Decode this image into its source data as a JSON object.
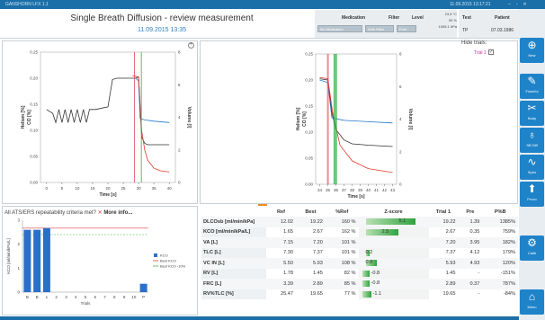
{
  "titlebar": {
    "app": "GANSHORN LFX 1.1",
    "datetime": "11.09.2015 13:17:21"
  },
  "header": {
    "title": "Single Breath Diffusion - review measurement",
    "date": "11.09.2015 13:35",
    "medication_label": "Medication",
    "medication_value": "No Medication",
    "filter_label": "Filter",
    "filter_value": "With Filter",
    "level_label": "Level",
    "level_value": "Post",
    "env": [
      "24.5 °C",
      "90 %",
      "1005.1 hPa"
    ],
    "test_label": "Test",
    "patient_label": "Patient",
    "test_value": "TP",
    "patient_value": "07.03.1986"
  },
  "sidebar": [
    {
      "label": "New",
      "icon": "⊕"
    },
    {
      "label": "FlowVol",
      "icon": "✎"
    },
    {
      "label": "Body",
      "icon": "✂"
    },
    {
      "label": "SB Diff",
      "icon": "♁"
    },
    {
      "label": "Spiro",
      "icon": "∿"
    },
    {
      "label": "Provo",
      "icon": "⬆"
    },
    {
      "label": "Calib",
      "icon": "⚙"
    },
    {
      "label": "Menu",
      "icon": "⌂"
    }
  ],
  "trials": {
    "hide_label": "Hide trials:",
    "trial1": "Trial 1",
    "check": "✓"
  },
  "criteria": {
    "text": "All ATS/ERS repeatability criteria met?",
    "x": "✕",
    "more": "More info..."
  },
  "table": {
    "headers": [
      "",
      "Ref",
      "Best",
      "%Ref",
      "Z-score",
      "Trial 1",
      "Pre",
      "P%B"
    ],
    "rows": [
      {
        "name": "DLCOsb",
        "unit": "[ml/min/kPa]",
        "ref": "12.02",
        "best": "19.22",
        "pref": "160 %",
        "z": "5.1",
        "zfrac": 0.78,
        "t1": "19.22",
        "pre": "1.39",
        "pb": "1385%"
      },
      {
        "name": "KCO",
        "unit": "[ml/min/kPa/L]",
        "ref": "1.65",
        "best": "2.67",
        "pref": "162 %",
        "z": "2.5",
        "zfrac": 0.52,
        "t1": "2.67",
        "pre": "0.35",
        "pb": "759%"
      },
      {
        "name": "VA",
        "unit": "[L]",
        "ref": "7.15",
        "best": "7.20",
        "pref": "101 %",
        "z": "",
        "zfrac": 0,
        "t1": "7.20",
        "pre": "3.95",
        "pb": "182%"
      },
      {
        "name": "TLC",
        "unit": "[L]",
        "ref": "7.30",
        "best": "7.37",
        "pref": "101 %",
        "z": "0.2",
        "zfrac": 0.06,
        "t1": "7.37",
        "pre": "4.12",
        "pb": "179%"
      },
      {
        "name": "VC IN",
        "unit": "[L]",
        "ref": "5.50",
        "best": "5.93",
        "pref": "108 %",
        "z": "0.8",
        "zfrac": 0.17,
        "t1": "5.93",
        "pre": "4.93",
        "pb": "120%"
      },
      {
        "name": "RV",
        "unit": "[L]",
        "ref": "1.78",
        "best": "1.45",
        "pref": "82 %",
        "z": "-0.8",
        "zfrac": 0.12,
        "t1": "1.45",
        "pre": "-",
        "pb": "-151%"
      },
      {
        "name": "FRC",
        "unit": "[L]",
        "ref": "3.39",
        "best": "2.89",
        "pref": "85 %",
        "z": "-0.8",
        "zfrac": 0.12,
        "t1": "2.89",
        "pre": "0.37",
        "pb": "787%"
      },
      {
        "name": "RV%TLC",
        "unit": "[%]",
        "ref": "25.47",
        "best": "19.65",
        "pref": "77 %",
        "z": "-1.1",
        "zfrac": 0.14,
        "t1": "19.65",
        "pre": "-",
        "pb": "-84%"
      }
    ]
  },
  "chart_data": [
    {
      "type": "line",
      "xlabel": "Time [s]",
      "ylabel_left": "Helium [%]",
      "ylabel_left2": "CO [%]",
      "ylabel_right": "Volume [l]",
      "xlim": [
        -2,
        42
      ],
      "xticks": [
        0,
        5,
        10,
        15,
        20,
        25,
        30,
        35,
        40
      ],
      "yticks_left": [
        "0.25",
        "0.20",
        "0.15",
        "0.10",
        "0.05",
        "0.00"
      ],
      "yticks_right": [
        "8",
        "6",
        "4",
        "2",
        "0"
      ],
      "series": [
        {
          "color": "#333333",
          "points": [
            [
              0,
              5.6
            ],
            [
              2,
              5.3
            ],
            [
              3,
              4.6
            ],
            [
              4,
              5.6
            ],
            [
              5,
              4.6
            ],
            [
              6,
              5.6
            ],
            [
              7,
              4.6
            ],
            [
              8,
              5.6
            ],
            [
              9,
              4.6
            ],
            [
              10,
              5.6
            ],
            [
              11,
              4.6
            ],
            [
              12,
              5.6
            ],
            [
              13,
              4.6
            ],
            [
              14,
              5.6
            ],
            [
              16,
              5.6
            ],
            [
              18,
              5.7
            ],
            [
              20,
              5.8
            ],
            [
              21.5,
              7.9
            ],
            [
              23,
              8.0
            ],
            [
              25,
              8.0
            ],
            [
              27,
              8.0
            ],
            [
              29,
              8.0
            ],
            [
              30,
              8.1
            ],
            [
              31,
              3.5
            ],
            [
              32,
              3.0
            ],
            [
              33,
              2.9
            ],
            [
              35,
              2.9
            ],
            [
              38,
              2.9
            ],
            [
              40,
              2.9
            ]
          ]
        },
        {
          "color": "#1f78c8",
          "points": [
            [
              29,
              8.0
            ],
            [
              30,
              7.8
            ],
            [
              30.5,
              4.9
            ],
            [
              32,
              4.8
            ],
            [
              35,
              4.7
            ],
            [
              40,
              4.6
            ]
          ]
        },
        {
          "color": "#e03a2a",
          "points": [
            [
              28,
              8.2
            ],
            [
              30,
              8.1
            ],
            [
              31,
              4.0
            ],
            [
              32,
              2.5
            ],
            [
              33,
              1.7
            ],
            [
              35,
              1.1
            ],
            [
              37,
              0.9
            ],
            [
              40,
              0.8
            ]
          ]
        }
      ]
    },
    {
      "type": "line",
      "xlabel": "Time [s]",
      "ylabel_left": "Helium [%]",
      "ylabel_left2": "CO [%]",
      "ylabel_right": "Volume [l]",
      "xlim": [
        33.5,
        43.5
      ],
      "xticks": [
        34,
        35,
        36,
        37,
        38,
        39,
        40,
        41,
        42,
        43
      ],
      "yticks_left": [
        "0.25",
        "0.20",
        "0.15",
        "0.10",
        "0.05",
        "0.00"
      ],
      "yticks_right": [
        "8",
        "6",
        "4",
        "2",
        "0"
      ],
      "series": [
        {
          "color": "#333333",
          "points": [
            [
              34,
              8.1
            ],
            [
              35,
              8.0
            ],
            [
              35.5,
              5.5
            ],
            [
              36,
              4.2
            ],
            [
              37,
              3.4
            ],
            [
              38,
              3.1
            ],
            [
              40,
              3.0
            ],
            [
              43,
              2.9
            ]
          ]
        },
        {
          "color": "#1f78c8",
          "points": [
            [
              34,
              8.0
            ],
            [
              35,
              7.8
            ],
            [
              35.5,
              5.1
            ],
            [
              37,
              4.9
            ],
            [
              40,
              4.8
            ],
            [
              43,
              4.7
            ]
          ]
        },
        {
          "color": "#e03a2a",
          "points": [
            [
              34,
              8.2
            ],
            [
              35,
              8.1
            ],
            [
              35.6,
              5.5
            ],
            [
              36.5,
              3.0
            ],
            [
              38,
              1.8
            ],
            [
              40,
              1.2
            ],
            [
              43,
              0.9
            ]
          ]
        }
      ]
    },
    {
      "type": "bar",
      "ylabel": "KCO [ml/min/kPa/L]",
      "xlabel": "Trials",
      "categories": [
        "B",
        "B",
        "1",
        "2",
        "3",
        "4",
        "5",
        "6",
        "7",
        "8",
        "9",
        "10",
        "P"
      ],
      "values": [
        2.6,
        2.6,
        2.67,
        0,
        0,
        0,
        0,
        0,
        0,
        0,
        0,
        0,
        0.35
      ],
      "ylim": [
        0,
        3
      ],
      "legend": [
        "KCO",
        "Best KCO",
        "Best KCO -10%"
      ],
      "best": 2.67,
      "best_minus10": 2.4
    }
  ]
}
